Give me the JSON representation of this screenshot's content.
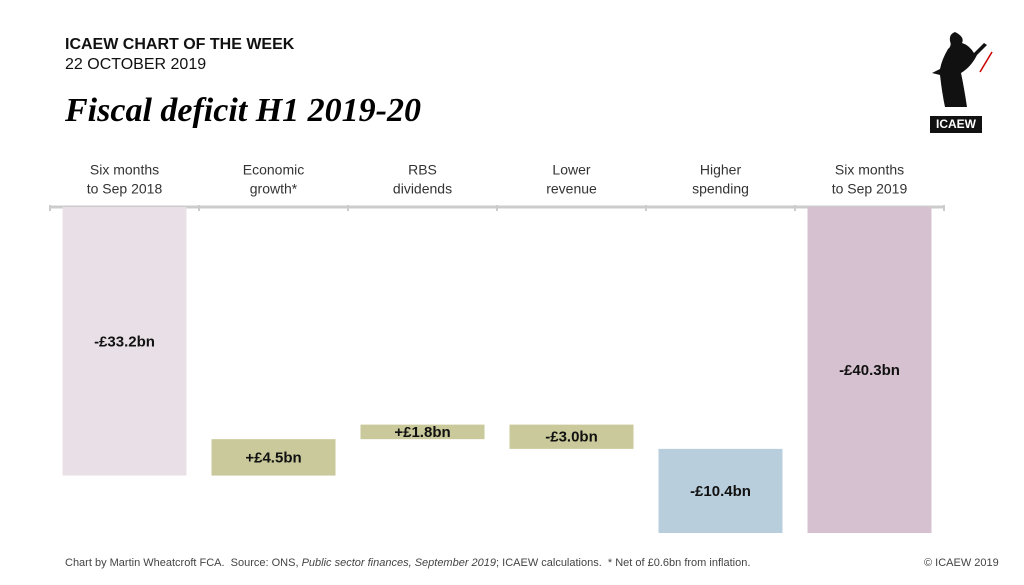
{
  "header": {
    "series_title": "ICAEW CHART OF THE WEEK",
    "date": "22 OCTOBER 2019"
  },
  "chart_data": {
    "type": "waterfall",
    "title": "Fiscal deficit H1 2019-20",
    "categories": [
      [
        "Six months",
        "to Sep 2018"
      ],
      [
        "Economic",
        "growth*"
      ],
      [
        "RBS",
        "dividends"
      ],
      [
        "Lower",
        "revenue"
      ],
      [
        "Higher",
        "spending"
      ],
      [
        "Six months",
        "to Sep 2019"
      ]
    ],
    "measures": [
      "total",
      "relative",
      "relative",
      "relative",
      "relative",
      "total"
    ],
    "values": [
      -33.2,
      4.5,
      1.8,
      -3.0,
      -10.4,
      -40.3
    ],
    "value_labels": [
      "-£33.2bn",
      "+£4.5bn",
      "+£1.8bn",
      "-£3.0bn",
      "-£10.4bn",
      "-£40.3bn"
    ],
    "colors": [
      "#e9e0e7",
      "#c9c99b",
      "#c9c99b",
      "#c9c99b",
      "#b9cedc",
      "#d6c1d0"
    ]
  },
  "footer": [
    "Chart by Martin Wheatcroft FCA.  Source: ONS, ",
    "Public sector finances, September 2019",
    "; ICAEW calculations.  * Net of £0.6bn from inflation."
  ],
  "copyright": "© ICAEW 2019",
  "logo_text": "ICAEW"
}
